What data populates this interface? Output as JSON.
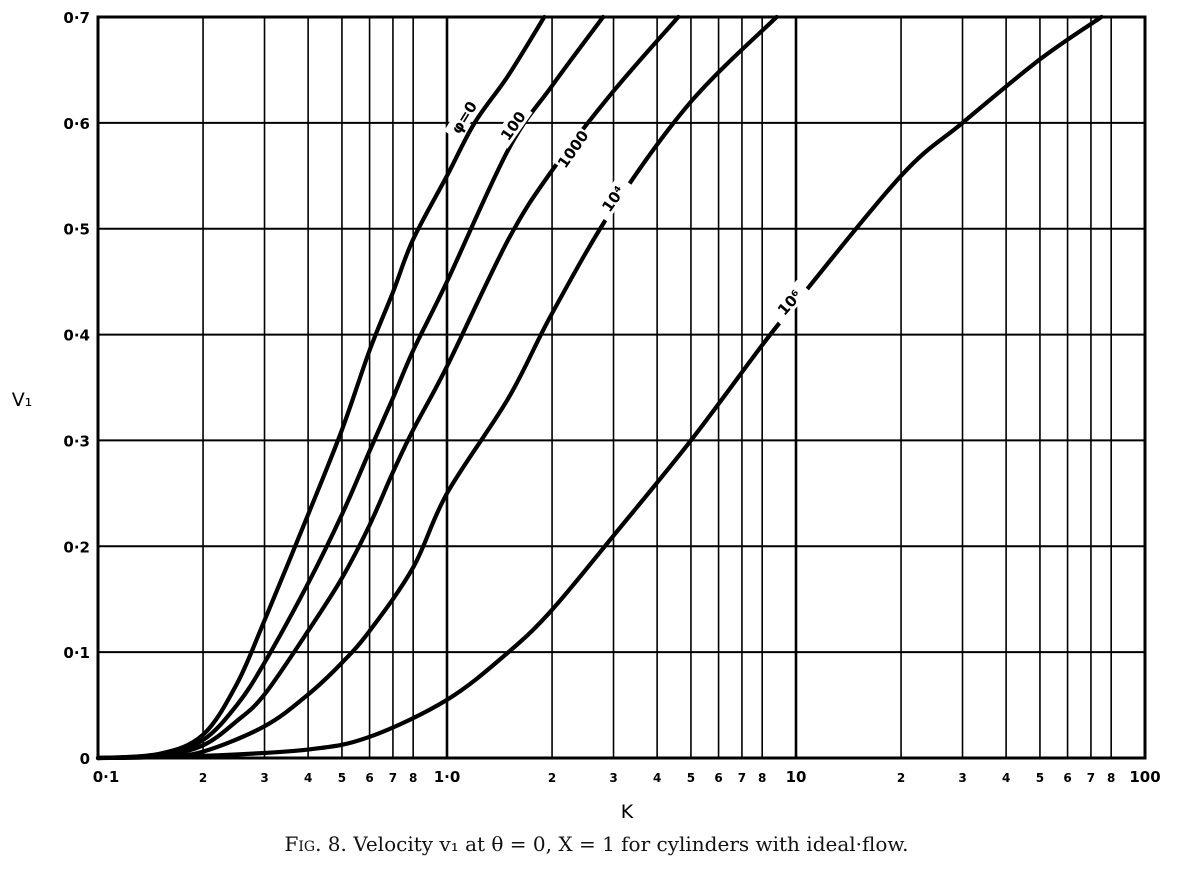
{
  "figure": {
    "caption_prefix": "Fig. 8.",
    "caption_text": "Velocity v₁ at θ = 0, X = 1 for cylinders with ideal·flow."
  },
  "chart_data": {
    "type": "line",
    "title": "Velocity v1 at theta = 0, X = 1 for cylinders with ideal flow",
    "xlabel": "K",
    "ylabel": "V₁",
    "xscale": "log",
    "xlim": [
      0.1,
      100
    ],
    "ylim": [
      0,
      0.7
    ],
    "grid": true,
    "legend_position": "inline labels on curves",
    "x_tick_labels": [
      "0·1",
      "2",
      "3",
      "4",
      "5",
      "6",
      "7",
      "8",
      "1·0",
      "2",
      "3",
      "4",
      "5",
      "6",
      "7",
      "8",
      "10",
      "2",
      "3",
      "4",
      "5",
      "6",
      "7",
      "8",
      "100"
    ],
    "x_tick_values": [
      0.1,
      0.2,
      0.3,
      0.4,
      0.5,
      0.6,
      0.7,
      0.8,
      1,
      2,
      3,
      4,
      5,
      6,
      7,
      8,
      10,
      20,
      30,
      40,
      50,
      60,
      70,
      80,
      100
    ],
    "y_tick_labels": [
      "0",
      "0·1",
      "0·2",
      "0·3",
      "0·4",
      "0·5",
      "0·6",
      "0·7"
    ],
    "y_tick_values": [
      0,
      0.1,
      0.2,
      0.3,
      0.4,
      0.5,
      0.6,
      0.7
    ],
    "series": [
      {
        "name": "φ=0",
        "label": "φ=0",
        "x": [
          0.1,
          0.15,
          0.2,
          0.25,
          0.3,
          0.4,
          0.5,
          0.6,
          0.7,
          0.8,
          1.0,
          1.2,
          1.5,
          1.9
        ],
        "y": [
          0,
          0.004,
          0.022,
          0.07,
          0.13,
          0.23,
          0.31,
          0.385,
          0.44,
          0.49,
          0.55,
          0.6,
          0.645,
          0.7
        ],
        "label_pos": {
          "K": 1.12,
          "v": 0.605,
          "angle": -58
        }
      },
      {
        "name": "100",
        "label": "100",
        "x": [
          0.1,
          0.15,
          0.2,
          0.25,
          0.3,
          0.4,
          0.5,
          0.6,
          0.7,
          0.8,
          1.0,
          1.5,
          2.0,
          2.8
        ],
        "y": [
          0,
          0.003,
          0.017,
          0.05,
          0.09,
          0.165,
          0.23,
          0.29,
          0.34,
          0.385,
          0.45,
          0.575,
          0.635,
          0.7
        ],
        "label_pos": {
          "K": 1.55,
          "v": 0.597,
          "angle": -55
        }
      },
      {
        "name": "1000",
        "label": "1000",
        "x": [
          0.1,
          0.15,
          0.2,
          0.25,
          0.3,
          0.4,
          0.5,
          0.6,
          0.7,
          0.8,
          1.0,
          1.5,
          2.0,
          3.0,
          4.6
        ],
        "y": [
          0,
          0.002,
          0.012,
          0.035,
          0.06,
          0.12,
          0.17,
          0.22,
          0.27,
          0.31,
          0.37,
          0.49,
          0.555,
          0.63,
          0.7
        ],
        "label_pos": {
          "K": 2.3,
          "v": 0.575,
          "angle": -55
        }
      },
      {
        "name": "10⁴",
        "label": "10⁴",
        "x": [
          0.1,
          0.15,
          0.2,
          0.3,
          0.4,
          0.5,
          0.6,
          0.8,
          1.0,
          1.5,
          2.0,
          3.0,
          5.0,
          8.8
        ],
        "y": [
          0,
          0.001,
          0.006,
          0.03,
          0.06,
          0.09,
          0.12,
          0.18,
          0.25,
          0.34,
          0.42,
          0.52,
          0.62,
          0.7
        ],
        "label_pos": {
          "K": 3.0,
          "v": 0.528,
          "angle": -55
        }
      },
      {
        "name": "10⁶",
        "label": "10⁶",
        "x": [
          0.1,
          0.2,
          0.4,
          0.6,
          1.0,
          1.5,
          2.0,
          3.0,
          5.0,
          8.0,
          10,
          20,
          30,
          50,
          75
        ],
        "y": [
          0,
          0.002,
          0.008,
          0.02,
          0.055,
          0.1,
          0.14,
          0.21,
          0.3,
          0.39,
          0.43,
          0.55,
          0.6,
          0.66,
          0.7
        ],
        "label_pos": {
          "K": 9.6,
          "v": 0.43,
          "angle": -48
        }
      }
    ]
  }
}
